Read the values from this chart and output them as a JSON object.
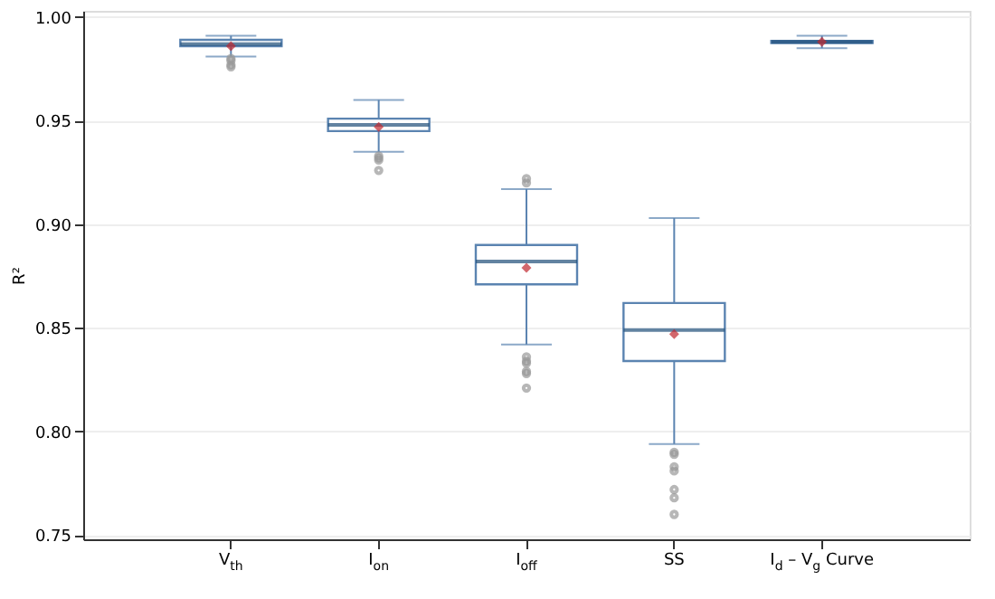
{
  "chart_data": {
    "type": "box",
    "ylabel": "R²",
    "categories": [
      "V$_{th}$",
      "I$_{on}$",
      "I$_{off}$",
      "SS",
      "I$_{d}$ – V$_{g}$ Curve"
    ],
    "series": [
      {
        "color": "#5b84b1",
        "boxes": [
          {
            "low": 0.981,
            "q1": 0.986,
            "median": 0.987,
            "q3": 0.989,
            "high": 0.991,
            "mean": 0.986,
            "outliers": [
              0.98,
              0.979,
              0.977,
              0.976
            ]
          },
          {
            "low": 0.935,
            "q1": 0.945,
            "median": 0.948,
            "q3": 0.951,
            "high": 0.96,
            "mean": 0.947,
            "outliers": [
              0.933,
              0.932,
              0.931,
              0.926
            ]
          },
          {
            "low": 0.842,
            "q1": 0.871,
            "median": 0.882,
            "q3": 0.89,
            "high": 0.917,
            "mean": 0.879,
            "outliers": [
              0.922,
              0.92,
              0.836,
              0.834,
              0.833,
              0.829,
              0.828,
              0.821
            ]
          },
          {
            "low": 0.794,
            "q1": 0.834,
            "median": 0.849,
            "q3": 0.862,
            "high": 0.903,
            "mean": 0.847,
            "outliers": [
              0.79,
              0.789,
              0.783,
              0.781,
              0.772,
              0.768,
              0.76
            ]
          },
          {
            "low": 0.985,
            "q1": 0.9875,
            "median": 0.988,
            "q3": 0.9885,
            "high": 0.991,
            "mean": 0.988
          }
        ]
      }
    ],
    "ylim": [
      0.748,
      1.003
    ],
    "yticks": [
      0.75,
      {
        "value": 0.8,
        "label": "0.80"
      },
      0.85,
      {
        "value": 0.9,
        "label": "0.90"
      },
      0.95,
      {
        "value": 1.0,
        "label": "1.00"
      }
    ],
    "grid": "y"
  }
}
